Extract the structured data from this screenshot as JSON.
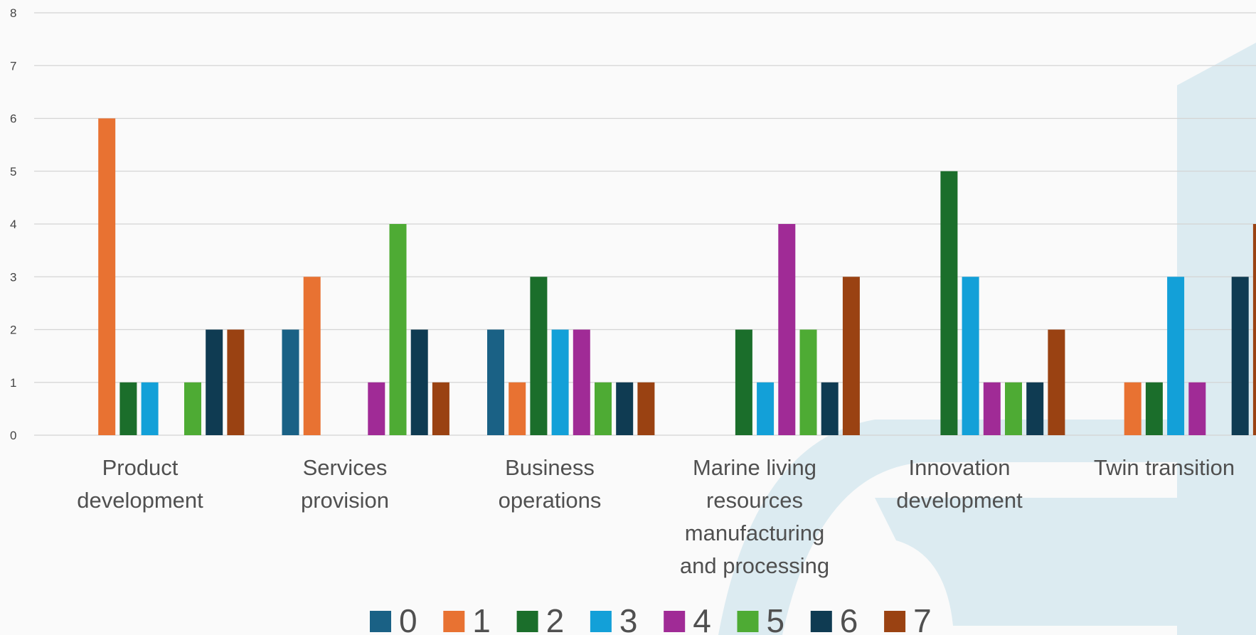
{
  "chart_data": {
    "type": "bar",
    "title": "",
    "xlabel": "",
    "ylabel": "",
    "ylim": [
      0,
      8
    ],
    "y_ticks": [
      "0",
      "1",
      "2",
      "3",
      "4",
      "5",
      "6",
      "7",
      "8"
    ],
    "grid": true,
    "legend_position": "bottom",
    "categories": [
      [
        "Product",
        "development"
      ],
      [
        "Services",
        "provision"
      ],
      [
        "Business",
        "operations"
      ],
      [
        "Marine living",
        "resources",
        "manufacturing",
        "and processing"
      ],
      [
        "Innovation",
        "development"
      ],
      [
        "Twin transition"
      ]
    ],
    "series": [
      {
        "name": "0",
        "color": "#1a6185",
        "values": [
          0,
          2,
          2,
          0,
          0,
          0
        ]
      },
      {
        "name": "1",
        "color": "#e87232",
        "values": [
          6,
          3,
          1,
          0,
          0,
          1
        ]
      },
      {
        "name": "2",
        "color": "#1b6e2b",
        "values": [
          1,
          0,
          3,
          2,
          5,
          1
        ]
      },
      {
        "name": "3",
        "color": "#13a0d8",
        "values": [
          1,
          0,
          2,
          1,
          3,
          3
        ]
      },
      {
        "name": "4",
        "color": "#a02b96",
        "values": [
          0,
          1,
          2,
          4,
          1,
          1
        ]
      },
      {
        "name": "5",
        "color": "#4eab34",
        "values": [
          1,
          4,
          1,
          2,
          1,
          0
        ]
      },
      {
        "name": "6",
        "color": "#0f3b52",
        "values": [
          2,
          2,
          1,
          1,
          1,
          3
        ]
      },
      {
        "name": "7",
        "color": "#9a4212",
        "values": [
          2,
          1,
          1,
          3,
          2,
          4
        ]
      }
    ]
  }
}
